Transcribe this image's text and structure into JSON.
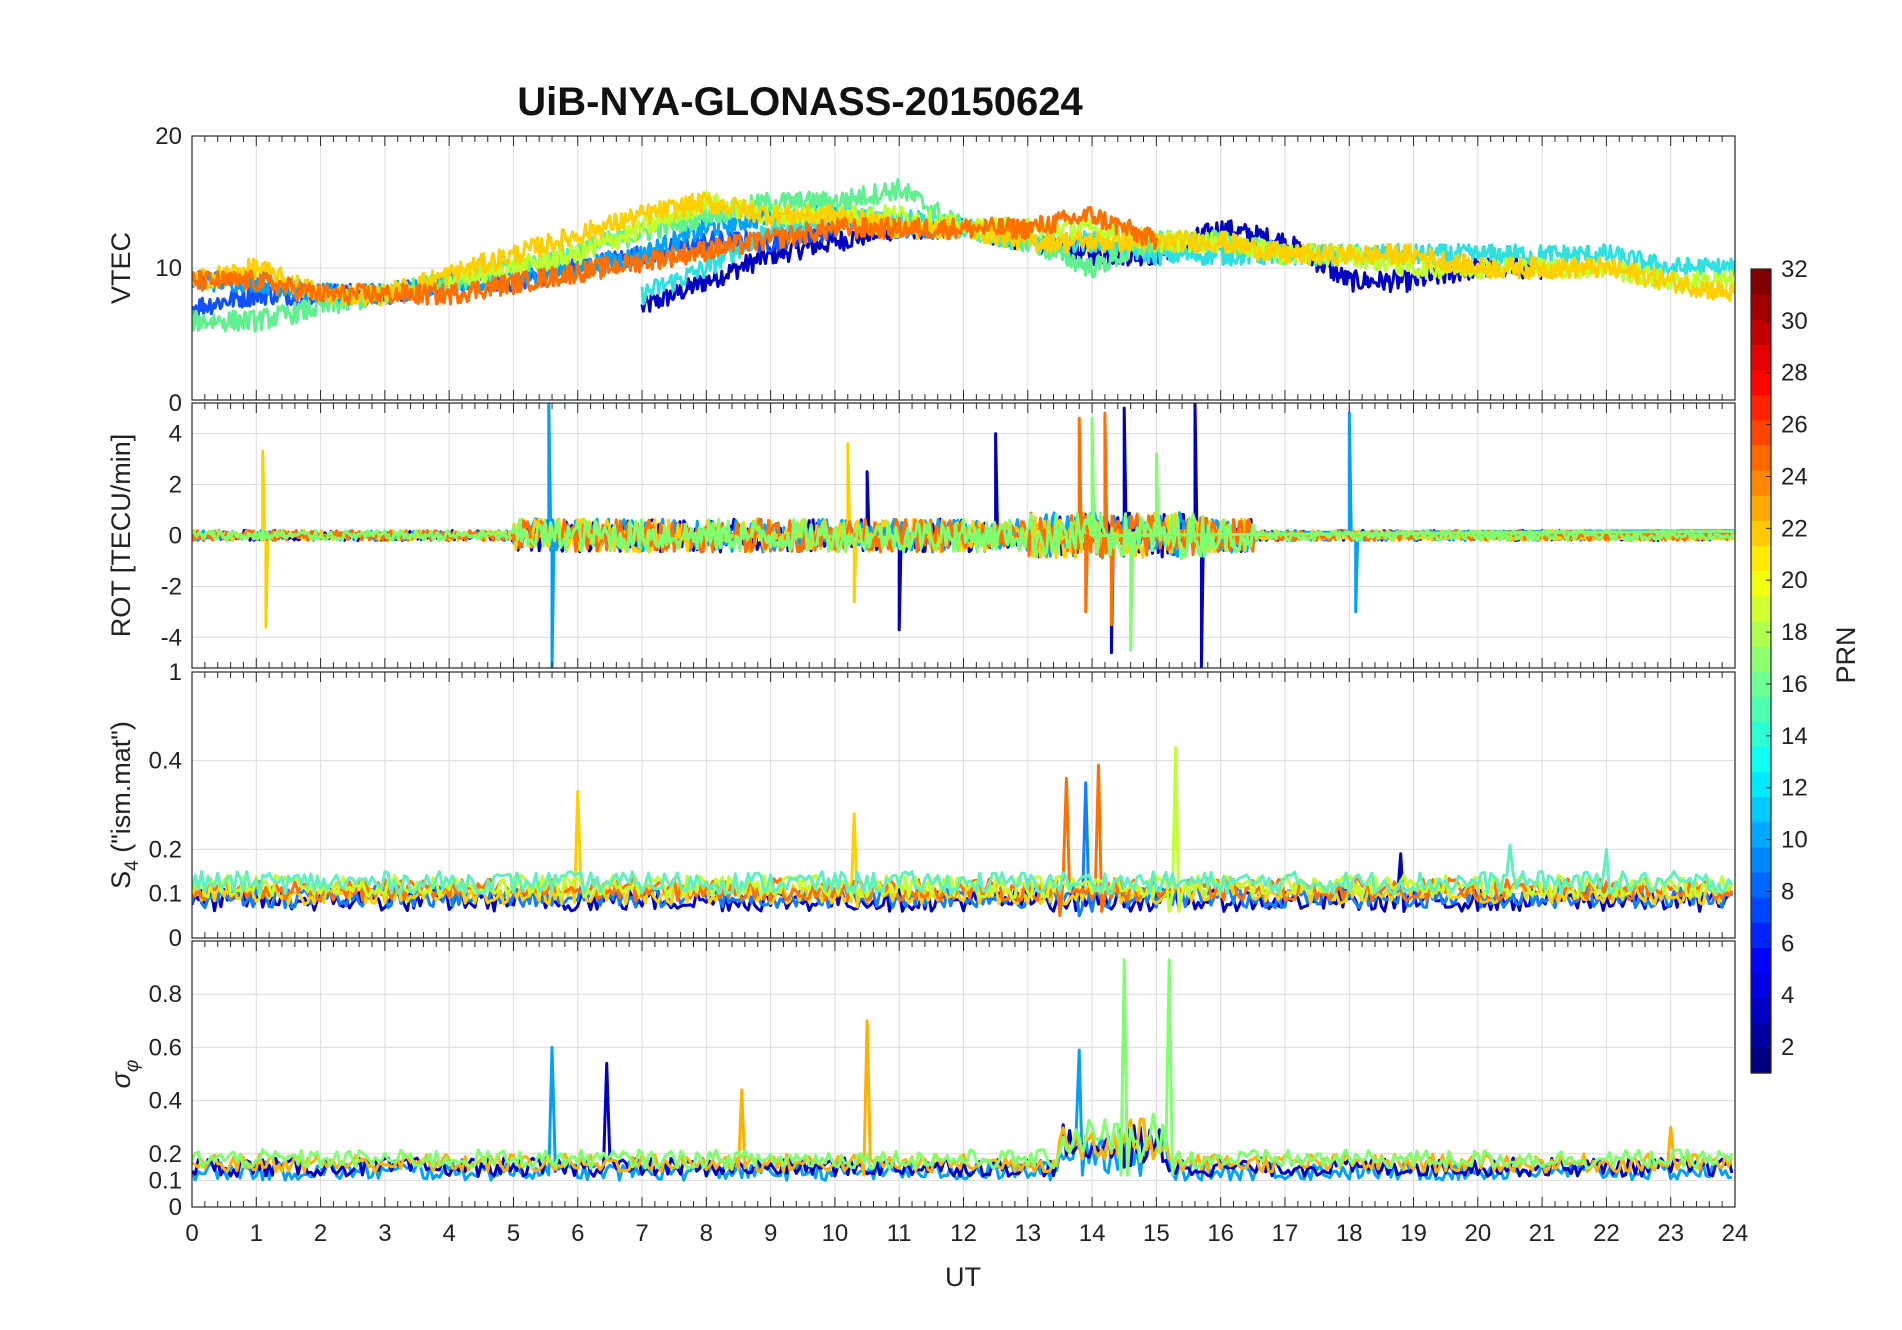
{
  "figure": {
    "title": "UiB-NYA-GLONASS-20150624",
    "xlabel": "UT"
  },
  "colorbar": {
    "label": "PRN",
    "ticks": [
      "2",
      "4",
      "6",
      "8",
      "10",
      "12",
      "14",
      "16",
      "18",
      "20",
      "22",
      "24",
      "26",
      "28",
      "30",
      "32"
    ],
    "min": 1,
    "max": 32,
    "colormap": "jet",
    "levels": 32
  },
  "chart_data": [
    {
      "type": "line",
      "panel": "VTEC",
      "ylabel": "VTEC",
      "ylim": [
        0,
        20
      ],
      "yticks": [
        "10",
        "20"
      ],
      "xlim": [
        0,
        24
      ],
      "grid": true,
      "series": [
        {
          "color": "#0000c0",
          "x": [
            7.0,
            8.0,
            9.0,
            10.0,
            11.0,
            12.0,
            13.0,
            14.0,
            15.0,
            16.0,
            17.0,
            18.0,
            19.0,
            20.0,
            21.0
          ],
          "values": [
            7,
            9,
            11,
            12,
            13,
            13,
            12,
            11,
            11,
            13,
            12,
            9,
            9,
            10,
            10
          ]
        },
        {
          "color": "#1050ff",
          "x": [
            0.0,
            1.0,
            2.0,
            3.0,
            4.0,
            5.0,
            6.0,
            7.0,
            8.0,
            9.0,
            10.0
          ],
          "values": [
            7,
            8,
            8,
            8,
            9,
            9,
            10,
            11,
            12,
            12,
            13
          ]
        },
        {
          "color": "#00a0ff",
          "x": [
            0.0,
            1.0,
            2.0,
            3.0,
            4.0,
            5.0,
            6.0,
            7.0,
            8.0,
            9.0,
            10.0,
            11.0,
            12.0
          ],
          "values": [
            9,
            9,
            8,
            8,
            9,
            9,
            10,
            11,
            13,
            14,
            14,
            13,
            13
          ]
        },
        {
          "color": "#30e0e0",
          "x": [
            7.0,
            8.0,
            9.0,
            10.0,
            11.0,
            12.0,
            13.0,
            14.0,
            15.0,
            16.0,
            17.0,
            18.0,
            19.0,
            20.0,
            21.0,
            22.0,
            23.0,
            24.0
          ],
          "values": [
            8,
            10,
            13,
            14,
            14,
            13,
            12,
            12,
            11,
            11,
            11,
            11,
            11,
            11,
            11,
            11,
            10,
            10
          ]
        },
        {
          "color": "#60f090",
          "x": [
            0.0,
            1.0,
            2.0,
            3.0,
            4.0,
            5.0,
            8.0,
            9.0,
            10.0,
            11.0,
            12.0,
            13.0,
            14.0,
            15.0,
            16.0,
            17.0
          ],
          "values": [
            6,
            6,
            7,
            8,
            9,
            10,
            14,
            15,
            15,
            16,
            13,
            12,
            10,
            12,
            12,
            11
          ]
        },
        {
          "color": "#c0ff30",
          "x": [
            4.0,
            5.0,
            6.0,
            7.0,
            8.0,
            9.0,
            10.0,
            11.0,
            12.0,
            13.0,
            14.0,
            15.0,
            16.0,
            17.0,
            18.0,
            19.0,
            20.0,
            21.0,
            22.0,
            23.0,
            24.0
          ],
          "values": [
            9,
            10,
            11,
            13,
            15,
            14,
            14,
            14,
            13,
            13,
            13,
            12,
            12,
            11,
            11,
            10,
            10,
            10,
            10,
            9,
            9
          ]
        },
        {
          "color": "#ffd000",
          "x": [
            0.0,
            1.0,
            2.0,
            3.0,
            7.0,
            8.0,
            9.0,
            10.0,
            11.0,
            12.0,
            13.0,
            14.0,
            15.0,
            16.0,
            17.0,
            18.0,
            19.0,
            20.0,
            21.0,
            22.0,
            23.0,
            24.0
          ],
          "values": [
            9,
            10,
            8,
            8,
            14,
            15,
            14,
            14,
            13,
            13,
            12,
            12,
            12,
            12,
            11,
            11,
            11,
            10,
            10,
            10,
            9,
            8
          ]
        },
        {
          "color": "#ff7000",
          "x": [
            0.0,
            1.0,
            2.0,
            3.0,
            4.0,
            10.0,
            11.0,
            12.0,
            13.0,
            14.0,
            15.0
          ],
          "values": [
            9,
            9,
            8,
            8,
            8,
            13,
            13,
            13,
            13,
            14,
            12
          ]
        }
      ]
    },
    {
      "type": "line",
      "panel": "ROT",
      "ylabel": "ROT [TECU/min]",
      "ylim": [
        -5.2,
        5.2
      ],
      "yticks": [
        "-4",
        "-2",
        "0",
        "2",
        "4"
      ],
      "top_tick_label": "0",
      "xlim": [
        0,
        24
      ],
      "grid": true,
      "series": [
        {
          "color": "#0000c0",
          "x": [
            10.5,
            11.0,
            12.5,
            14.3,
            14.5,
            15.6,
            15.7
          ],
          "values": [
            2.5,
            -3.7,
            4.0,
            -4.6,
            5.0,
            5.2,
            -5.2
          ]
        },
        {
          "color": "#00a0ff",
          "x": [
            5.55,
            5.6,
            18.0,
            18.1
          ],
          "values": [
            5.2,
            -5.2,
            4.8,
            -3.0
          ]
        },
        {
          "color": "#ffd000",
          "x": [
            1.1,
            1.15,
            10.2,
            10.3
          ],
          "values": [
            3.3,
            -3.6,
            3.6,
            -2.6
          ]
        },
        {
          "color": "#ff7000",
          "x": [
            13.8,
            13.9,
            14.2,
            14.3
          ],
          "values": [
            4.6,
            -3.0,
            4.8,
            -3.5
          ]
        },
        {
          "color": "#80ff70",
          "x": [
            14.0,
            14.6,
            15.0
          ],
          "values": [
            4.6,
            -4.5,
            3.2
          ]
        }
      ]
    },
    {
      "type": "line",
      "panel": "S4",
      "ylabel": "S4 (\"ism.mat\")",
      "ylabel_main": "S",
      "ylabel_sub": "4",
      "ylabel_rest": " (\"ism.mat\")",
      "ylim": [
        0,
        0.6
      ],
      "yticks": [
        "0",
        "0.1",
        "0.2",
        "0.4"
      ],
      "top_tick_label": "1",
      "xlim": [
        0,
        24
      ],
      "grid": true,
      "series": [
        {
          "color": "#0000c0",
          "x": [
            18.8,
            18.85
          ],
          "values": [
            0.19,
            0.06
          ]
        },
        {
          "color": "#1080ff",
          "x": [
            13.8,
            13.9,
            14.0
          ],
          "values": [
            0.05,
            0.35,
            0.06
          ]
        },
        {
          "color": "#ffd000",
          "x": [
            5.9,
            6.0,
            6.1,
            10.3,
            10.35
          ],
          "values": [
            0.12,
            0.33,
            0.1,
            0.28,
            0.07
          ]
        },
        {
          "color": "#ff7000",
          "x": [
            13.5,
            13.6,
            14.1,
            14.15
          ],
          "values": [
            0.05,
            0.36,
            0.39,
            0.06
          ]
        },
        {
          "color": "#c0ff30",
          "x": [
            15.2,
            15.3,
            15.35
          ],
          "values": [
            0.06,
            0.43,
            0.06
          ]
        },
        {
          "color": "#60f0c0",
          "x": [
            20.5,
            21.0,
            22.0,
            23.5
          ],
          "values": [
            0.21,
            0.15,
            0.2,
            0.13
          ]
        }
      ]
    },
    {
      "type": "line",
      "panel": "sigma-phi",
      "ylabel": "σ_φ",
      "ylabel_main": "σ",
      "ylabel_sub": "φ",
      "ylim": [
        0,
        1
      ],
      "yticks": [
        "0",
        "0.1",
        "0.2",
        "0.4",
        "0.6",
        "0.8"
      ],
      "xlim": [
        0,
        24
      ],
      "xticks": [
        "0",
        "1",
        "2",
        "3",
        "4",
        "5",
        "6",
        "7",
        "8",
        "9",
        "10",
        "11",
        "12",
        "13",
        "14",
        "15",
        "16",
        "17",
        "18",
        "19",
        "20",
        "21",
        "22",
        "23",
        "24"
      ],
      "grid": true,
      "series": [
        {
          "color": "#00a0ff",
          "x": [
            5.55,
            5.6,
            13.8,
            13.85
          ],
          "values": [
            0.12,
            0.6,
            0.59,
            0.12
          ]
        },
        {
          "color": "#0000c0",
          "x": [
            6.4,
            6.45,
            6.5
          ],
          "values": [
            0.15,
            0.54,
            0.18
          ]
        },
        {
          "color": "#ffb000",
          "x": [
            8.55,
            10.45,
            10.5,
            23.0
          ],
          "values": [
            0.44,
            0.12,
            0.7,
            0.3
          ]
        },
        {
          "color": "#80ff70",
          "x": [
            14.45,
            14.5,
            14.55,
            15.2,
            15.25
          ],
          "values": [
            0.12,
            0.93,
            0.12,
            0.93,
            0.12
          ]
        }
      ]
    }
  ]
}
